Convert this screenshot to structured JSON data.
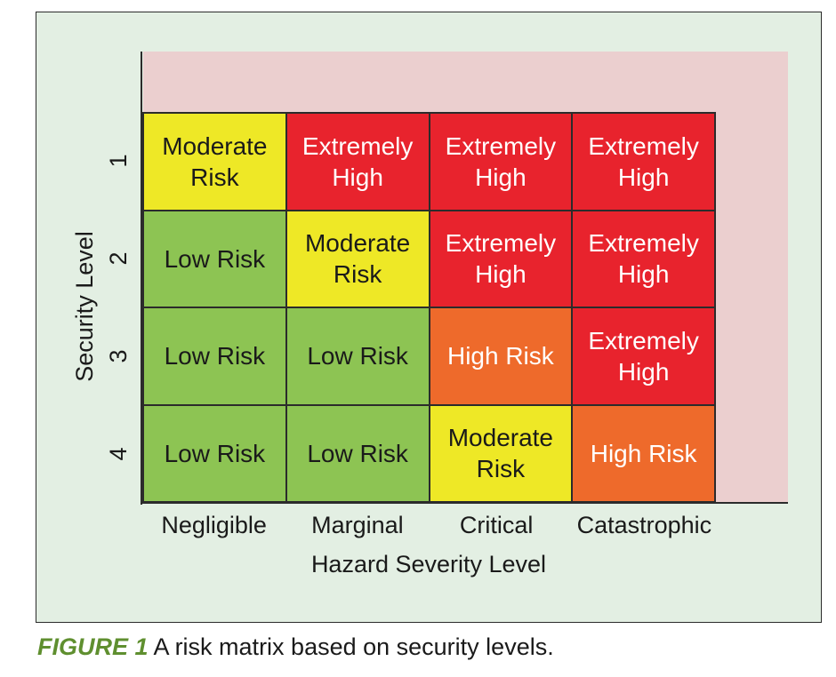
{
  "chart_data": {
    "type": "heatmap",
    "title": "",
    "xlabel": "Hazard Severity Level",
    "ylabel": "Security Level",
    "x_categories": [
      "Negligible",
      "Marginal",
      "Critical",
      "Catastrophic"
    ],
    "y_categories": [
      "1",
      "2",
      "3",
      "4"
    ],
    "cells": [
      [
        {
          "label": "Moderate Risk",
          "level": "moderate"
        },
        {
          "label": "Extremely High",
          "level": "extreme"
        },
        {
          "label": "Extremely High",
          "level": "extreme"
        },
        {
          "label": "Extremely High",
          "level": "extreme"
        }
      ],
      [
        {
          "label": "Low Risk",
          "level": "low"
        },
        {
          "label": "Moderate Risk",
          "level": "moderate"
        },
        {
          "label": "Extremely High",
          "level": "extreme"
        },
        {
          "label": "Extremely High",
          "level": "extreme"
        }
      ],
      [
        {
          "label": "Low Risk",
          "level": "low"
        },
        {
          "label": "Low Risk",
          "level": "low"
        },
        {
          "label": "High Risk",
          "level": "high"
        },
        {
          "label": "Extremely High",
          "level": "extreme"
        }
      ],
      [
        {
          "label": "Low Risk",
          "level": "low"
        },
        {
          "label": "Low Risk",
          "level": "low"
        },
        {
          "label": "Moderate Risk",
          "level": "moderate"
        },
        {
          "label": "High Risk",
          "level": "high"
        }
      ]
    ],
    "level_colors": {
      "low": "#8dc453",
      "moderate": "#eee826",
      "high": "#ee6a2b",
      "extreme": "#e8232d"
    }
  },
  "caption": {
    "label": "FIGURE 1",
    "text": " A risk matrix based on security levels."
  },
  "colors": {
    "panel_background": "#e3efe3",
    "backdrop": "#ebcfcf",
    "caption_label": "#5f8f2f"
  }
}
